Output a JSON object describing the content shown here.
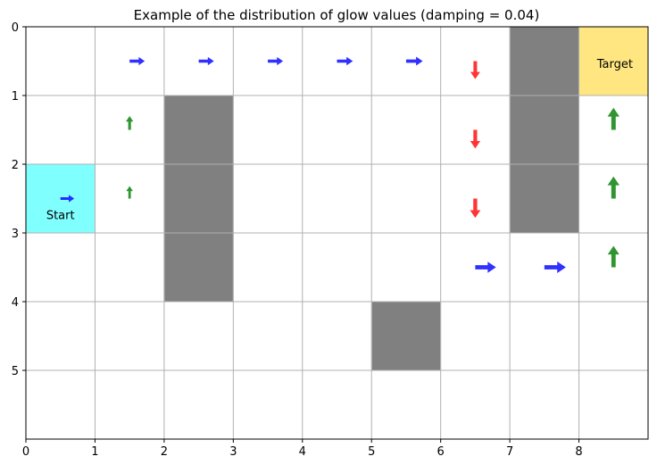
{
  "chart_data": {
    "type": "gridworld-quiver",
    "title": "Example of the distribution of glow values (damping = 0.04)",
    "xlim": [
      0,
      9
    ],
    "ylim": [
      6,
      0
    ],
    "x_ticks": [
      "0",
      "1",
      "2",
      "3",
      "4",
      "5",
      "6",
      "7",
      "8"
    ],
    "y_ticks": [
      "0",
      "1",
      "2",
      "3",
      "4",
      "5"
    ],
    "grid": true,
    "start": {
      "x": 0,
      "y": 2,
      "label": "Start",
      "color": "#80ffff"
    },
    "target": {
      "x": 8,
      "y": 0,
      "label": "Target",
      "color": "#ffe680"
    },
    "walls": [
      {
        "x": 2,
        "y": 1
      },
      {
        "x": 2,
        "y": 2
      },
      {
        "x": 2,
        "y": 3
      },
      {
        "x": 7,
        "y": 0
      },
      {
        "x": 7,
        "y": 1
      },
      {
        "x": 7,
        "y": 2
      },
      {
        "x": 5,
        "y": 4
      }
    ],
    "wall_color": "#808080",
    "direction_colors": {
      "right": "#1a1aff",
      "up": "#1a8a1a",
      "down": "#ff1f1f"
    },
    "arrows": [
      {
        "x": 0,
        "y": 2,
        "dir": "right",
        "glow": 0.2
      },
      {
        "x": 1,
        "y": 0,
        "dir": "right",
        "glow": 0.22
      },
      {
        "x": 2,
        "y": 0,
        "dir": "right",
        "glow": 0.22
      },
      {
        "x": 3,
        "y": 0,
        "dir": "right",
        "glow": 0.22
      },
      {
        "x": 4,
        "y": 0,
        "dir": "right",
        "glow": 0.23
      },
      {
        "x": 5,
        "y": 0,
        "dir": "right",
        "glow": 0.24
      },
      {
        "x": 1,
        "y": 1,
        "dir": "up",
        "glow": 0.2
      },
      {
        "x": 1,
        "y": 2,
        "dir": "up",
        "glow": 0.18
      },
      {
        "x": 6,
        "y": 0,
        "dir": "down",
        "glow": 0.26
      },
      {
        "x": 6,
        "y": 1,
        "dir": "down",
        "glow": 0.27
      },
      {
        "x": 6,
        "y": 2,
        "dir": "down",
        "glow": 0.28
      },
      {
        "x": 6,
        "y": 3,
        "dir": "right",
        "glow": 0.3
      },
      {
        "x": 7,
        "y": 3,
        "dir": "right",
        "glow": 0.31
      },
      {
        "x": 8,
        "y": 1,
        "dir": "up",
        "glow": 0.32
      },
      {
        "x": 8,
        "y": 2,
        "dir": "up",
        "glow": 0.32
      },
      {
        "x": 8,
        "y": 3,
        "dir": "up",
        "glow": 0.31
      }
    ]
  }
}
